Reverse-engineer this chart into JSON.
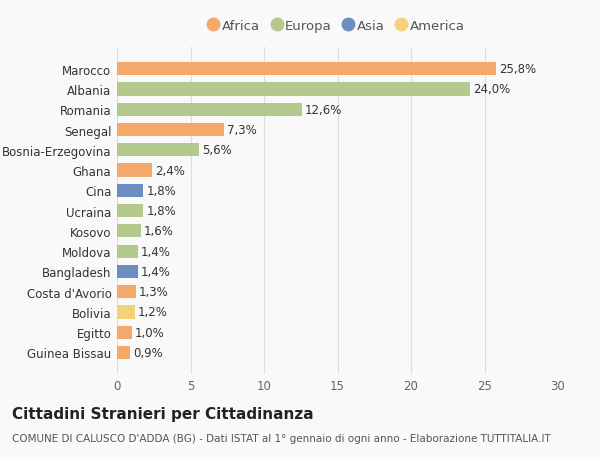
{
  "countries": [
    "Guinea Bissau",
    "Egitto",
    "Bolivia",
    "Costa d'Avorio",
    "Bangladesh",
    "Moldova",
    "Kosovo",
    "Ucraina",
    "Cina",
    "Ghana",
    "Bosnia-Erzegovina",
    "Senegal",
    "Romania",
    "Albania",
    "Marocco"
  ],
  "values": [
    0.9,
    1.0,
    1.2,
    1.3,
    1.4,
    1.4,
    1.6,
    1.8,
    1.8,
    2.4,
    5.6,
    7.3,
    12.6,
    24.0,
    25.8
  ],
  "continents": [
    "Africa",
    "Africa",
    "America",
    "Africa",
    "Asia",
    "Europa",
    "Europa",
    "Europa",
    "Asia",
    "Africa",
    "Europa",
    "Africa",
    "Europa",
    "Europa",
    "Africa"
  ],
  "colors": {
    "Africa": "#F4A96A",
    "Europa": "#B5C98E",
    "Asia": "#6B8DBF",
    "America": "#F5D17A"
  },
  "legend_order": [
    "Africa",
    "Europa",
    "Asia",
    "America"
  ],
  "labels": [
    "0,9%",
    "1,0%",
    "1,2%",
    "1,3%",
    "1,4%",
    "1,4%",
    "1,6%",
    "1,8%",
    "1,8%",
    "2,4%",
    "5,6%",
    "7,3%",
    "12,6%",
    "24,0%",
    "25,8%"
  ],
  "xlim": [
    0,
    30
  ],
  "xticks": [
    0,
    5,
    10,
    15,
    20,
    25,
    30
  ],
  "title": "Cittadini Stranieri per Cittadinanza",
  "subtitle": "COMUNE DI CALUSCO D'ADDA (BG) - Dati ISTAT al 1° gennaio di ogni anno - Elaborazione TUTTITALIA.IT",
  "bg_color": "#f9f9f9",
  "bar_height": 0.65,
  "title_fontsize": 11,
  "subtitle_fontsize": 7.5,
  "label_fontsize": 8.5,
  "tick_fontsize": 8.5,
  "legend_fontsize": 9.5
}
